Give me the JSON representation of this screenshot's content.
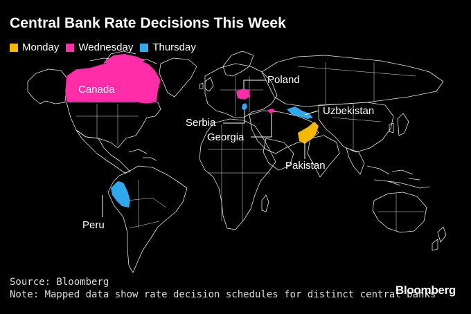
{
  "title": "Central Bank Rate Decisions This Week",
  "legend": [
    {
      "label": "Monday",
      "color": "#f5b800"
    },
    {
      "label": "Wednesday",
      "color": "#ff2ea8"
    },
    {
      "label": "Thursday",
      "color": "#2fa8ec"
    }
  ],
  "countries": [
    {
      "name": "Canada",
      "day": "Wednesday"
    },
    {
      "name": "Poland",
      "day": "Wednesday"
    },
    {
      "name": "Serbia",
      "day": "Thursday"
    },
    {
      "name": "Georgia",
      "day": "Wednesday"
    },
    {
      "name": "Uzbekistan",
      "day": "Thursday"
    },
    {
      "name": "Pakistan",
      "day": "Monday"
    },
    {
      "name": "Peru",
      "day": "Thursday"
    }
  ],
  "footer": {
    "source": "Source: Bloomberg",
    "note": "Note: Mapped data show rate decision schedules for distinct central banks"
  },
  "brand": "Bloomberg"
}
